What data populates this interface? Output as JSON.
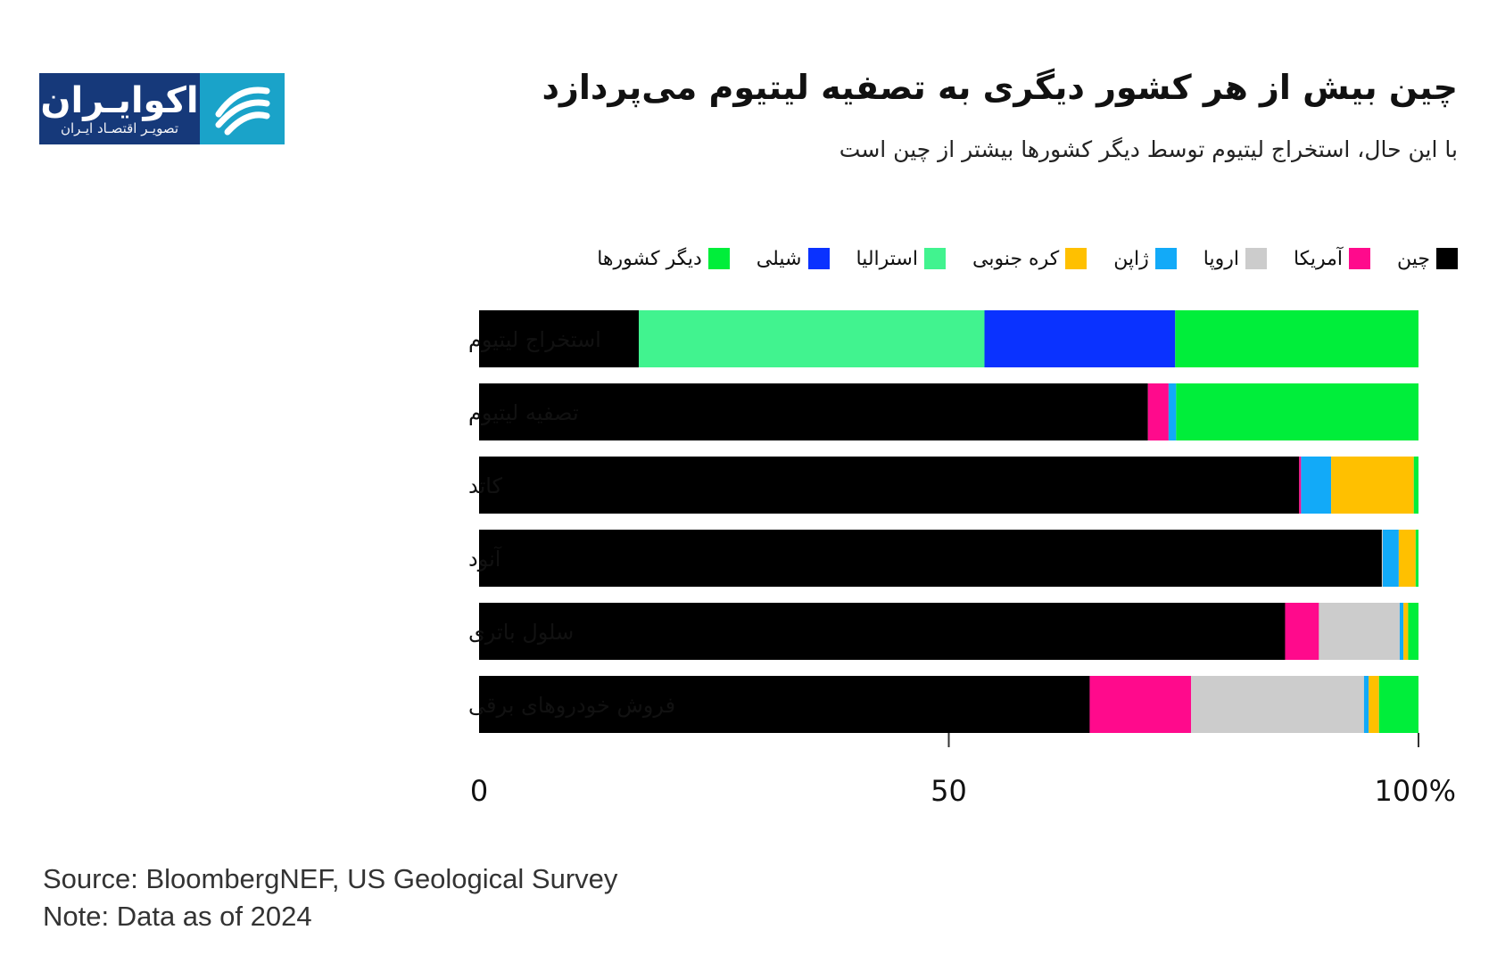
{
  "header": {
    "title": "چین بیش از هر کشور دیگری به تصفیه لیتیوم می‌پردازد",
    "subtitle": "با این حال، استخراج لیتیوم توسط دیگر کشورها بیشتر از چین است"
  },
  "logo": {
    "name": "اکوایـران",
    "tagline": "تصویـر اقتصـاد ایـران",
    "mark_icon": "ekoiran-swoosh-icon",
    "colors": {
      "text_bg": "#16397a",
      "mark_bg": "#1aa3c9"
    }
  },
  "footer": {
    "source": "Source: BloombergNEF, US Geological Survey",
    "note": "Note: Data as of 2024"
  },
  "chart_data": {
    "type": "bar",
    "orientation": "horizontal",
    "stacked": true,
    "categories": [
      "استخراج لیتیوم",
      "تصفیه لیتیوم",
      "کاتد",
      "آنود",
      "سلول باتری",
      "فروش خودروهای برقی"
    ],
    "series": [
      {
        "name": "چین",
        "color": "#000000",
        "values": [
          17,
          71.2,
          87.3,
          96.1,
          85.8,
          65
        ]
      },
      {
        "name": "آمریکا",
        "color": "#ff0a8c",
        "values": [
          0,
          2.2,
          0.2,
          0,
          3.6,
          10.8
        ]
      },
      {
        "name": "اروپا",
        "color": "#cccccc",
        "values": [
          0,
          0,
          0,
          0.1,
          8.6,
          18.4
        ]
      },
      {
        "name": "ژاپن",
        "color": "#12aaf8",
        "values": [
          0,
          0.8,
          3.2,
          1.7,
          0.4,
          0.5
        ]
      },
      {
        "name": "کره جنوبی",
        "color": "#ffc000",
        "values": [
          0,
          0,
          8.8,
          1.8,
          0.5,
          1.1
        ]
      },
      {
        "name": "استرالیا",
        "color": "#41f38f",
        "values": [
          36.8,
          0,
          0,
          0,
          0,
          0
        ]
      },
      {
        "name": "شیلی",
        "color": "#0a32ff",
        "values": [
          20.3,
          0,
          0,
          0,
          0,
          0
        ]
      },
      {
        "name": "دیگر کشورها",
        "color": "#00ee3a",
        "values": [
          25.9,
          25.8,
          0.5,
          0.3,
          1.1,
          4.2
        ]
      }
    ],
    "xlim": [
      0,
      100
    ],
    "xticks": [
      "0",
      "50",
      "100%"
    ],
    "grid": false,
    "legend_position": "top"
  }
}
